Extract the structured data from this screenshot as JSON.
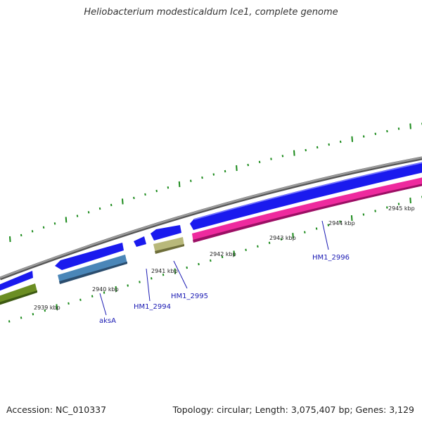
{
  "title": "Heliobacterium modesticaldum Ice1, complete genome",
  "footer": {
    "accession": "Accession: NC_010337",
    "summary": "Topology: circular; Length: 3,075,407 bp; Genes: 3,129"
  },
  "ticks": [
    {
      "label": "2939 kbp"
    },
    {
      "label": "2940 kbp"
    },
    {
      "label": "2941 kbp"
    },
    {
      "label": "2942 kbp"
    },
    {
      "label": "2943 kbp"
    },
    {
      "label": "2944 kbp"
    },
    {
      "label": "2945 kbp"
    }
  ],
  "gene_labels": [
    {
      "name": "aksA"
    },
    {
      "name": "HM1_2994"
    },
    {
      "name": "HM1_2995"
    },
    {
      "name": "HM1_2996"
    }
  ],
  "colors": {
    "backbone": "#808080",
    "orf_forward": "#1a1aee",
    "gene_green": "#6b8e23",
    "gene_steelblue": "#4a86b8",
    "gene_khaki": "#b8b87a",
    "gene_pink": "#ee2a9e",
    "tick_green": "#1a8a1a",
    "label_blue": "#1a1ab3"
  }
}
